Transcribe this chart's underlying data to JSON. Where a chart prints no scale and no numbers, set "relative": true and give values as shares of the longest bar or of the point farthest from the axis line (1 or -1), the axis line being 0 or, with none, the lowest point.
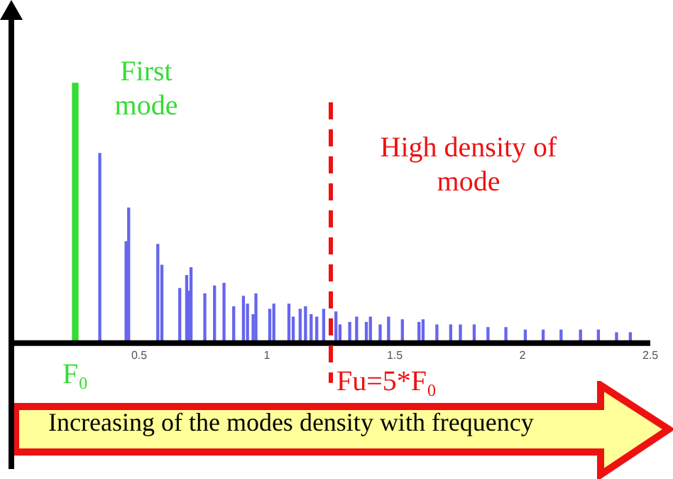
{
  "chart_data": {
    "type": "bar",
    "relative": true,
    "xlim": [
      0,
      2.5
    ],
    "xticks": [
      0.5,
      1,
      1.5,
      2,
      2.5
    ],
    "series": [
      {
        "name": "First mode",
        "color": "#33dd33",
        "x": [
          0.25
        ],
        "values": [
          1
        ]
      },
      {
        "color": "#6666ee",
        "x": [
          0.346,
          0.449,
          0.459,
          0.573,
          0.589,
          0.659,
          0.686,
          0.692,
          0.703,
          0.757,
          0.795,
          0.832,
          0.87,
          0.908,
          0.924,
          0.946,
          0.957,
          1.011,
          1.027,
          1.086,
          1.103,
          1.13,
          1.151,
          1.173,
          1.195,
          1.222,
          1.249,
          1.27,
          1.286,
          1.324,
          1.351,
          1.389,
          1.405,
          1.443,
          1.476,
          1.53,
          1.595,
          1.611,
          1.665,
          1.719,
          1.757,
          1.811,
          1.865,
          1.935,
          2.011,
          2.081,
          2.151,
          2.227,
          2.297,
          2.368,
          2.422
        ],
        "values": [
          0.73,
          0.39,
          0.52,
          0.38,
          0.3,
          0.21,
          0.26,
          0.2,
          0.29,
          0.19,
          0.22,
          0.23,
          0.14,
          0.18,
          0.15,
          0.11,
          0.19,
          0.13,
          0.15,
          0.15,
          0.1,
          0.13,
          0.14,
          0.11,
          0.1,
          0.13,
          null,
          0.12,
          0.07,
          0.08,
          0.1,
          0.08,
          0.1,
          0.07,
          0.1,
          0.09,
          0.08,
          0.09,
          0.07,
          0.07,
          0.07,
          0.07,
          0.06,
          0.06,
          0.05,
          0.05,
          0.05,
          0.05,
          0.05,
          0.04,
          0.04
        ]
      }
    ],
    "ref_lines": [
      {
        "axis": "x",
        "value": 1.25,
        "color": "#ee1111",
        "line_style": "dashed"
      }
    ],
    "annotations": [
      {
        "text": "F₀",
        "x": 0.25,
        "y": 0
      },
      {
        "text": "Fu=5*F₀",
        "x": 1.25,
        "y": 0
      },
      "High density of mode",
      "Increasing of the modes density with frequency"
    ],
    "legend": false
  }
}
